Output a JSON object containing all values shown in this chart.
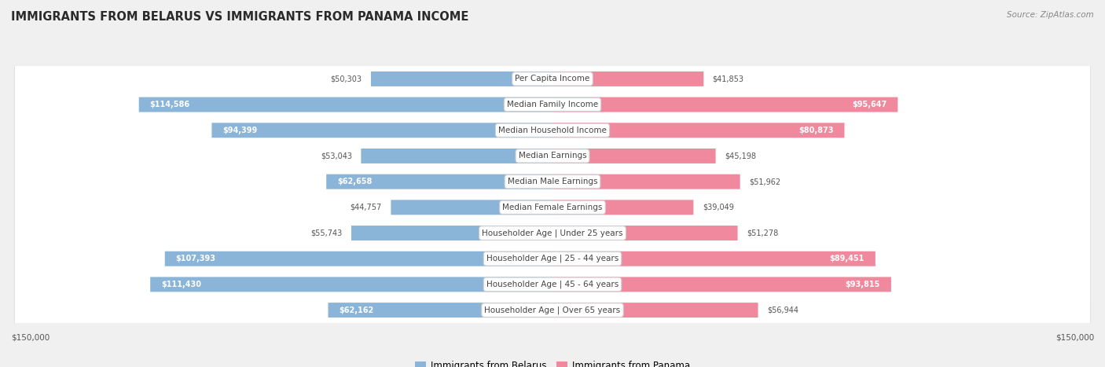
{
  "title": "IMMIGRANTS FROM BELARUS VS IMMIGRANTS FROM PANAMA INCOME",
  "source": "Source: ZipAtlas.com",
  "categories": [
    "Per Capita Income",
    "Median Family Income",
    "Median Household Income",
    "Median Earnings",
    "Median Male Earnings",
    "Median Female Earnings",
    "Householder Age | Under 25 years",
    "Householder Age | 25 - 44 years",
    "Householder Age | 45 - 64 years",
    "Householder Age | Over 65 years"
  ],
  "belarus_values": [
    50303,
    114586,
    94399,
    53043,
    62658,
    44757,
    55743,
    107393,
    111430,
    62162
  ],
  "panama_values": [
    41853,
    95647,
    80873,
    45198,
    51962,
    39049,
    51278,
    89451,
    93815,
    56944
  ],
  "belarus_color": "#8ab4d8",
  "panama_color": "#f0889e",
  "max_value": 150000,
  "background_color": "#f0f0f0",
  "row_bg_color": "#ffffff",
  "row_border_color": "#dddddd",
  "label_dark_color": "#555555",
  "label_white_color": "#ffffff",
  "inside_threshold": 60000,
  "cat_label_color": "#444444",
  "cat_label_fontsize": 7.5,
  "val_label_fontsize": 7.0,
  "legend_belarus": "Immigrants from Belarus",
  "legend_panama": "Immigrants from Panama",
  "title_fontsize": 10.5,
  "source_fontsize": 7.5,
  "axis_label_fontsize": 7.5
}
